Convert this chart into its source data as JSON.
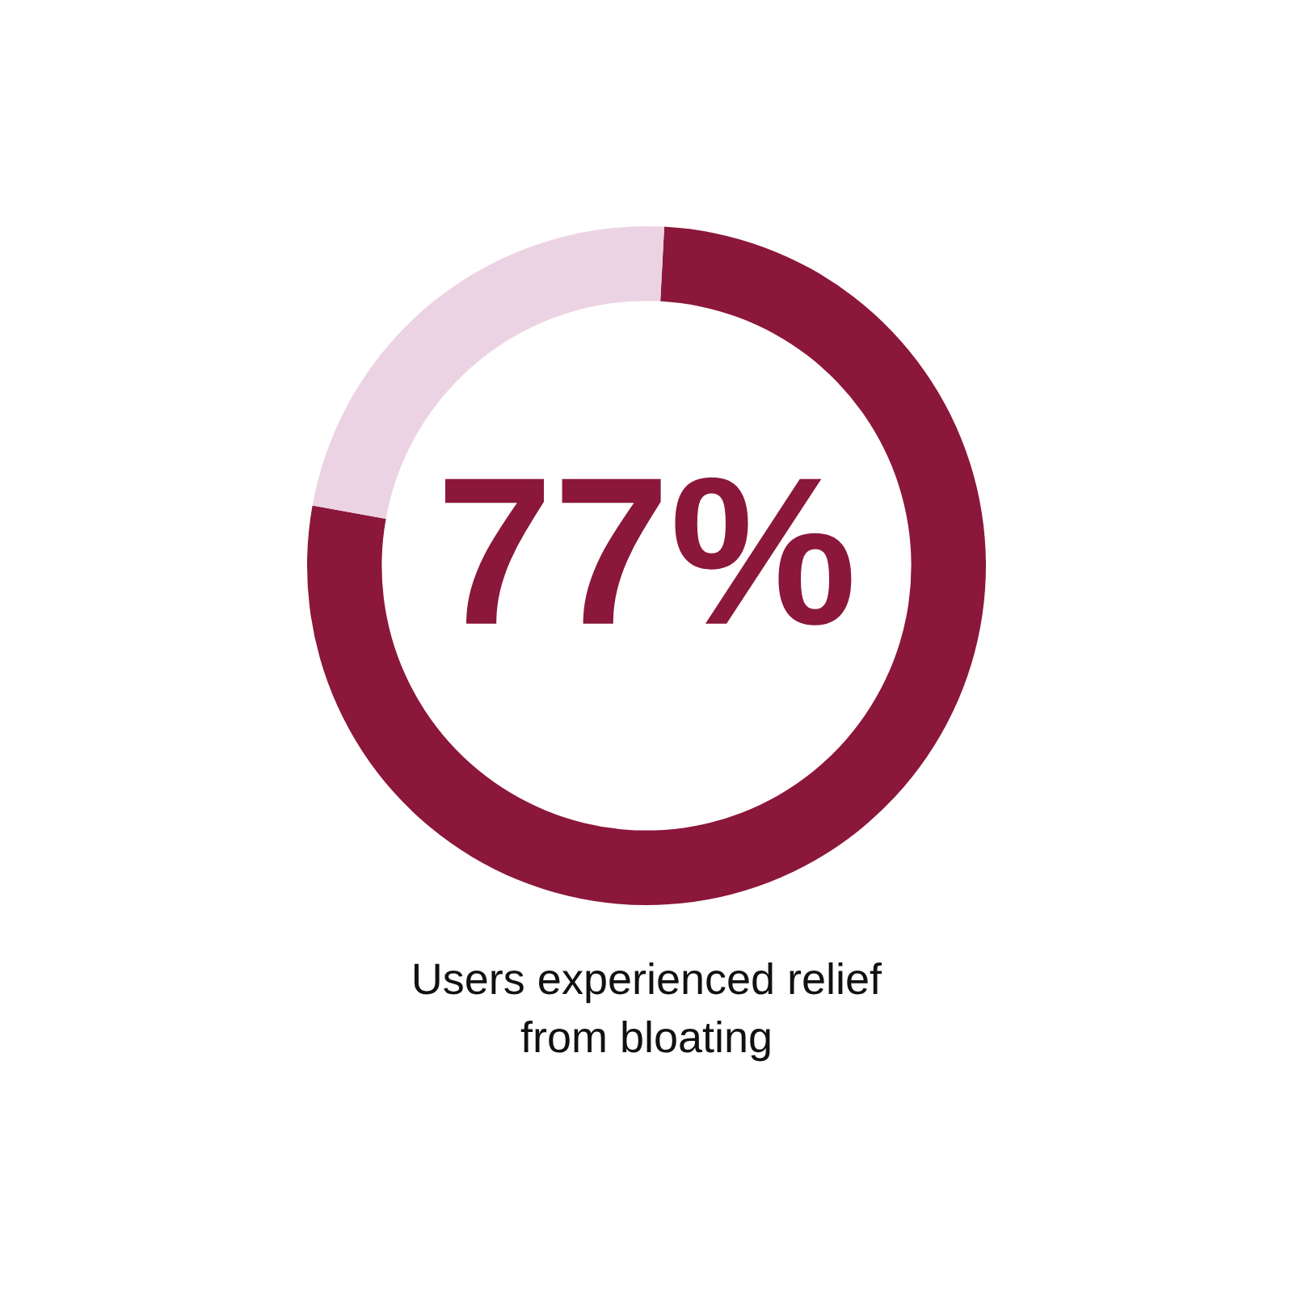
{
  "chart_data": {
    "type": "donut",
    "categories": [
      null,
      null
    ],
    "values": [
      77,
      23
    ],
    "colors": [
      "#8b173b",
      "#ecd3e3"
    ],
    "value_labels": [
      "77%",
      null
    ],
    "legend": false,
    "annotations": [
      "Users experienced relief\nfrom bloating"
    ]
  }
}
